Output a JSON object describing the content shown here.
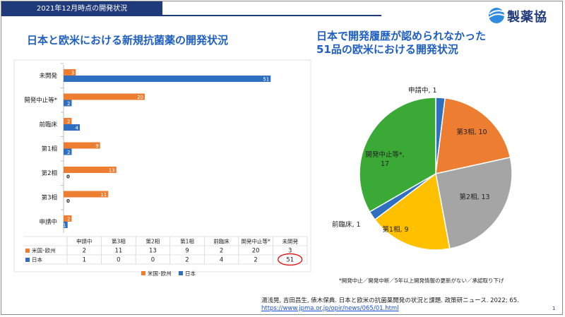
{
  "header": {
    "date_label": "2021年12月時点の開発状況",
    "logo_text": "製薬協"
  },
  "left_title": "日本と欧米における新規抗菌薬の開発状況",
  "right_title_line1": "日本で開発履歴が認められなかった",
  "right_title_line2": "51品の欧米における開発状況",
  "footnote": "*開発中止／開発中断／5年以上開発情報の更新がない／承認取り下げ",
  "citation": "湯浅晃, 吉田昌生, 俵木保典. 日本と欧米の抗菌薬開発の状況と課題. 政策研ニュース. 2022; 65.",
  "citation_url": "https://www.jpma.or.jp/opir/news/065/01.html",
  "page_number": "1",
  "colors": {
    "orange": "#ed7d31",
    "blue": "#2e6fc0",
    "gray": "#a5a5a5",
    "yellow": "#ffc000",
    "green": "#3aa935",
    "accent": "#1f3a7a"
  },
  "chart_data": [
    {
      "type": "bar",
      "orientation": "horizontal",
      "categories": [
        "未開発",
        "開発中止等*",
        "前臨床",
        "第1相",
        "第2相",
        "第3相",
        "申請中"
      ],
      "series": [
        {
          "name": "米国･欧州",
          "values": [
            3,
            20,
            2,
            9,
            13,
            11,
            2
          ]
        },
        {
          "name": "日本",
          "values": [
            51,
            2,
            4,
            2,
            0,
            0,
            1
          ]
        }
      ],
      "legend": "bottom",
      "table": {
        "headers": [
          "申請中",
          "第3相",
          "第2相",
          "第1相",
          "前臨床",
          "開発中止等*",
          "未開発"
        ],
        "rows": [
          {
            "label": "米国･欧州",
            "values": [
              "2",
              "11",
              "13",
              "9",
              "2",
              "20",
              "3"
            ]
          },
          {
            "label": "日本",
            "values": [
              "1",
              "0",
              "0",
              "2",
              "4",
              "2",
              "51"
            ]
          }
        ]
      }
    },
    {
      "type": "pie",
      "slices": [
        {
          "label": "申請中",
          "value": 1,
          "text": "申請中, 1",
          "color": "#2e6fc0"
        },
        {
          "label": "第3相",
          "value": 10,
          "text": "第3相, 10",
          "color": "#ed7d31"
        },
        {
          "label": "第2相",
          "value": 13,
          "text": "第2相, 13",
          "color": "#a5a5a5"
        },
        {
          "label": "第1相",
          "value": 9,
          "text": "第1相, 9",
          "color": "#ffc000"
        },
        {
          "label": "前臨床",
          "value": 1,
          "text": "前臨床, 1",
          "color": "#2e6fc0"
        },
        {
          "label": "開発中止等*",
          "value": 17,
          "text_line1": "開発中止等*,",
          "text_line2": "17",
          "color": "#3aa935"
        }
      ]
    }
  ]
}
